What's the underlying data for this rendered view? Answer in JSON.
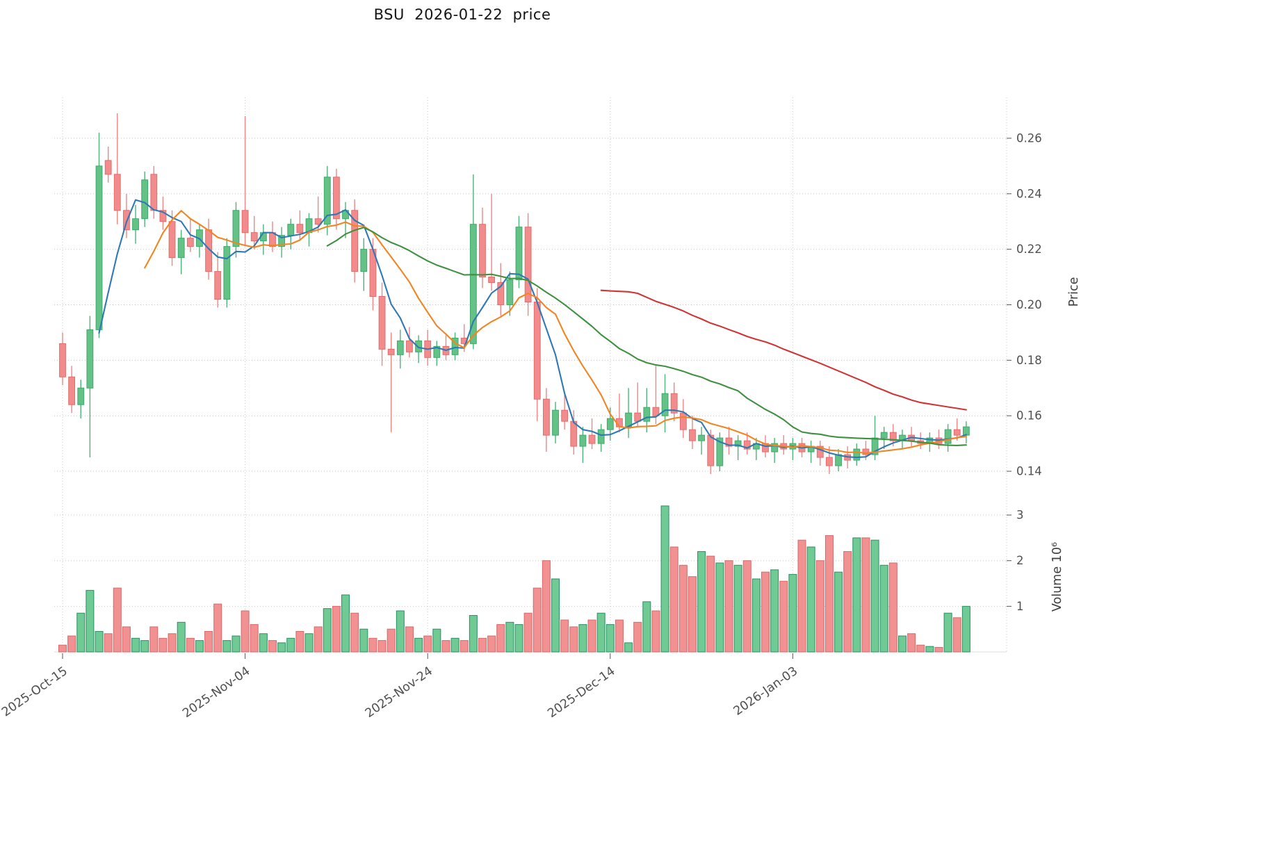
{
  "chart_data": {
    "type": "candlestick+volume",
    "title": "BSU  2026-01-22  price",
    "grid": true,
    "x_tick_labels": [
      "2025-Oct-15",
      "2025-Nov-04",
      "2025-Nov-24",
      "2025-Dec-14",
      "2026-Jan-03"
    ],
    "x_tick_indices": [
      0,
      20,
      40,
      60,
      80
    ],
    "price_axis": {
      "label": "Price",
      "ticks": [
        0.14,
        0.16,
        0.18,
        0.2,
        0.22,
        0.24,
        0.26
      ],
      "range": [
        0.1335,
        0.272
      ]
    },
    "volume_axis": {
      "label": "Volume 10⁶",
      "ticks": [
        1,
        2,
        3
      ],
      "range": [
        0,
        3.29
      ],
      "unit": "millions"
    },
    "moving_averages": [
      {
        "period": 5,
        "color": "#2e79b5"
      },
      {
        "period": 10,
        "color": "#f08522"
      },
      {
        "period": 30,
        "color": "#3d9140"
      },
      {
        "period": 60,
        "color": "#d03434"
      }
    ],
    "colors": {
      "up_fill": "#65c287",
      "up_edge": "#3fa86a",
      "up_wick": "#4db37a",
      "down_fill": "#f28c8c",
      "down_edge": "#e26c6c",
      "down_wick": "#ef8585",
      "vol_up_fill": "#6fca93",
      "vol_up_edge": "#2c8f63",
      "vol_down_fill": "#f29191",
      "vol_down_edge": "#d86868",
      "grid": "#c9c9c9",
      "tick_text": "#4f4f4f"
    },
    "columns": [
      "date",
      "open",
      "high",
      "low",
      "close",
      "volume_millions"
    ],
    "candles": [
      [
        "2025-10-15",
        0.186,
        0.19,
        0.171,
        0.174,
        0.15
      ],
      [
        "2025-10-16",
        0.174,
        0.178,
        0.161,
        0.164,
        0.35
      ],
      [
        "2025-10-17",
        0.164,
        0.173,
        0.159,
        0.17,
        0.85
      ],
      [
        "2025-10-18",
        0.17,
        0.196,
        0.145,
        0.191,
        1.35
      ],
      [
        "2025-10-19",
        0.191,
        0.262,
        0.188,
        0.25,
        0.45
      ],
      [
        "2025-10-20",
        0.252,
        0.257,
        0.244,
        0.247,
        0.4
      ],
      [
        "2025-10-21",
        0.247,
        0.269,
        0.229,
        0.234,
        1.4
      ],
      [
        "2025-10-22",
        0.234,
        0.24,
        0.224,
        0.227,
        0.55
      ],
      [
        "2025-10-23",
        0.227,
        0.236,
        0.222,
        0.231,
        0.3
      ],
      [
        "2025-10-24",
        0.231,
        0.248,
        0.228,
        0.245,
        0.25
      ],
      [
        "2025-10-25",
        0.247,
        0.25,
        0.231,
        0.234,
        0.55
      ],
      [
        "2025-10-26",
        0.234,
        0.239,
        0.227,
        0.23,
        0.3
      ],
      [
        "2025-10-27",
        0.23,
        0.234,
        0.214,
        0.217,
        0.4
      ],
      [
        "2025-10-28",
        0.217,
        0.227,
        0.211,
        0.224,
        0.65
      ],
      [
        "2025-10-29",
        0.224,
        0.231,
        0.219,
        0.221,
        0.3
      ],
      [
        "2025-10-30",
        0.221,
        0.229,
        0.217,
        0.227,
        0.25
      ],
      [
        "2025-10-31",
        0.227,
        0.231,
        0.209,
        0.212,
        0.45
      ],
      [
        "2025-11-01",
        0.212,
        0.219,
        0.199,
        0.202,
        1.05
      ],
      [
        "2025-11-02",
        0.202,
        0.224,
        0.199,
        0.221,
        0.25
      ],
      [
        "2025-11-03",
        0.221,
        0.237,
        0.217,
        0.234,
        0.35
      ],
      [
        "2025-11-04",
        0.234,
        0.268,
        0.221,
        0.226,
        0.9
      ],
      [
        "2025-11-05",
        0.226,
        0.232,
        0.22,
        0.223,
        0.6
      ],
      [
        "2025-11-06",
        0.223,
        0.229,
        0.218,
        0.226,
        0.4
      ],
      [
        "2025-11-07",
        0.226,
        0.23,
        0.219,
        0.221,
        0.25
      ],
      [
        "2025-11-08",
        0.221,
        0.228,
        0.217,
        0.225,
        0.2
      ],
      [
        "2025-11-09",
        0.225,
        0.231,
        0.22,
        0.229,
        0.3
      ],
      [
        "2025-11-10",
        0.229,
        0.234,
        0.223,
        0.226,
        0.45
      ],
      [
        "2025-11-11",
        0.226,
        0.233,
        0.221,
        0.231,
        0.4
      ],
      [
        "2025-11-12",
        0.231,
        0.239,
        0.226,
        0.229,
        0.55
      ],
      [
        "2025-11-13",
        0.229,
        0.25,
        0.225,
        0.246,
        0.95
      ],
      [
        "2025-11-14",
        0.246,
        0.249,
        0.227,
        0.231,
        1.0
      ],
      [
        "2025-11-15",
        0.231,
        0.237,
        0.224,
        0.234,
        1.25
      ],
      [
        "2025-11-16",
        0.234,
        0.238,
        0.208,
        0.212,
        0.85
      ],
      [
        "2025-11-17",
        0.212,
        0.224,
        0.205,
        0.22,
        0.5
      ],
      [
        "2025-11-18",
        0.22,
        0.224,
        0.198,
        0.203,
        0.3
      ],
      [
        "2025-11-19",
        0.203,
        0.208,
        0.178,
        0.184,
        0.25
      ],
      [
        "2025-11-20",
        0.184,
        0.19,
        0.154,
        0.182,
        0.5
      ],
      [
        "2025-11-21",
        0.182,
        0.191,
        0.177,
        0.187,
        0.9
      ],
      [
        "2025-11-22",
        0.187,
        0.192,
        0.181,
        0.183,
        0.55
      ],
      [
        "2025-11-23",
        0.183,
        0.189,
        0.179,
        0.187,
        0.3
      ],
      [
        "2025-11-24",
        0.187,
        0.191,
        0.178,
        0.181,
        0.35
      ],
      [
        "2025-11-25",
        0.181,
        0.187,
        0.178,
        0.185,
        0.5
      ],
      [
        "2025-11-26",
        0.185,
        0.189,
        0.18,
        0.182,
        0.25
      ],
      [
        "2025-11-27",
        0.182,
        0.19,
        0.18,
        0.188,
        0.3
      ],
      [
        "2025-11-28",
        0.188,
        0.193,
        0.183,
        0.186,
        0.25
      ],
      [
        "2025-11-29",
        0.186,
        0.247,
        0.184,
        0.229,
        0.8
      ],
      [
        "2025-11-30",
        0.229,
        0.235,
        0.206,
        0.21,
        0.3
      ],
      [
        "2025-12-01",
        0.21,
        0.24,
        0.205,
        0.208,
        0.35
      ],
      [
        "2025-12-02",
        0.208,
        0.215,
        0.196,
        0.2,
        0.6
      ],
      [
        "2025-12-03",
        0.2,
        0.212,
        0.196,
        0.209,
        0.65
      ],
      [
        "2025-12-04",
        0.209,
        0.232,
        0.206,
        0.228,
        0.6
      ],
      [
        "2025-12-05",
        0.228,
        0.233,
        0.196,
        0.201,
        0.85
      ],
      [
        "2025-12-06",
        0.201,
        0.206,
        0.158,
        0.166,
        1.4
      ],
      [
        "2025-12-07",
        0.166,
        0.17,
        0.147,
        0.153,
        2.0
      ],
      [
        "2025-12-08",
        0.153,
        0.165,
        0.15,
        0.162,
        1.6
      ],
      [
        "2025-12-09",
        0.162,
        0.168,
        0.155,
        0.158,
        0.7
      ],
      [
        "2025-12-10",
        0.158,
        0.162,
        0.146,
        0.149,
        0.55
      ],
      [
        "2025-12-11",
        0.149,
        0.156,
        0.143,
        0.153,
        0.6
      ],
      [
        "2025-12-12",
        0.153,
        0.159,
        0.148,
        0.15,
        0.7
      ],
      [
        "2025-12-13",
        0.15,
        0.157,
        0.147,
        0.155,
        0.85
      ],
      [
        "2025-12-14",
        0.155,
        0.163,
        0.151,
        0.159,
        0.6
      ],
      [
        "2025-12-15",
        0.159,
        0.168,
        0.154,
        0.156,
        0.7
      ],
      [
        "2025-12-16",
        0.156,
        0.17,
        0.152,
        0.161,
        0.2
      ],
      [
        "2025-12-17",
        0.161,
        0.172,
        0.156,
        0.158,
        0.65
      ],
      [
        "2025-12-18",
        0.158,
        0.17,
        0.154,
        0.163,
        1.1
      ],
      [
        "2025-12-19",
        0.163,
        0.178,
        0.157,
        0.16,
        0.9
      ],
      [
        "2025-12-20",
        0.16,
        0.175,
        0.154,
        0.168,
        3.2
      ],
      [
        "2025-12-21",
        0.168,
        0.172,
        0.158,
        0.161,
        2.3
      ],
      [
        "2025-12-22",
        0.161,
        0.166,
        0.152,
        0.155,
        1.9
      ],
      [
        "2025-12-23",
        0.155,
        0.16,
        0.148,
        0.151,
        1.65
      ],
      [
        "2025-12-24",
        0.151,
        0.156,
        0.146,
        0.153,
        2.2
      ],
      [
        "2025-12-25",
        0.153,
        0.155,
        0.139,
        0.142,
        2.1
      ],
      [
        "2025-12-26",
        0.142,
        0.154,
        0.14,
        0.152,
        1.95
      ],
      [
        "2025-12-27",
        0.152,
        0.156,
        0.146,
        0.149,
        2.0
      ],
      [
        "2025-12-28",
        0.149,
        0.153,
        0.144,
        0.151,
        1.9
      ],
      [
        "2025-12-29",
        0.151,
        0.154,
        0.146,
        0.148,
        2.0
      ],
      [
        "2025-12-30",
        0.148,
        0.152,
        0.144,
        0.15,
        1.6
      ],
      [
        "2025-12-31",
        0.15,
        0.153,
        0.145,
        0.147,
        1.75
      ],
      [
        "2026-01-01",
        0.147,
        0.152,
        0.143,
        0.15,
        1.8
      ],
      [
        "2026-01-02",
        0.15,
        0.153,
        0.146,
        0.148,
        1.55
      ],
      [
        "2026-01-03",
        0.148,
        0.152,
        0.144,
        0.15,
        1.7
      ],
      [
        "2026-01-04",
        0.15,
        0.152,
        0.145,
        0.147,
        2.45
      ],
      [
        "2026-01-05",
        0.147,
        0.151,
        0.143,
        0.149,
        2.3
      ],
      [
        "2026-01-06",
        0.149,
        0.151,
        0.142,
        0.145,
        2.0
      ],
      [
        "2026-01-07",
        0.145,
        0.149,
        0.139,
        0.142,
        2.55
      ],
      [
        "2026-01-08",
        0.142,
        0.148,
        0.14,
        0.146,
        1.75
      ],
      [
        "2026-01-09",
        0.146,
        0.149,
        0.141,
        0.144,
        2.2
      ],
      [
        "2026-01-10",
        0.144,
        0.15,
        0.142,
        0.148,
        2.5
      ],
      [
        "2026-01-11",
        0.148,
        0.151,
        0.144,
        0.146,
        2.5
      ],
      [
        "2026-01-12",
        0.146,
        0.16,
        0.144,
        0.152,
        2.45
      ],
      [
        "2026-01-13",
        0.152,
        0.156,
        0.148,
        0.154,
        1.9
      ],
      [
        "2026-01-14",
        0.154,
        0.157,
        0.149,
        0.151,
        1.95
      ],
      [
        "2026-01-15",
        0.151,
        0.155,
        0.148,
        0.153,
        0.35
      ],
      [
        "2026-01-16",
        0.153,
        0.156,
        0.149,
        0.151,
        0.4
      ],
      [
        "2026-01-17",
        0.151,
        0.154,
        0.148,
        0.15,
        0.15
      ],
      [
        "2026-01-18",
        0.15,
        0.154,
        0.147,
        0.152,
        0.12
      ],
      [
        "2026-01-19",
        0.152,
        0.155,
        0.148,
        0.15,
        0.1
      ],
      [
        "2026-01-20",
        0.15,
        0.157,
        0.147,
        0.155,
        0.85
      ],
      [
        "2026-01-21",
        0.155,
        0.159,
        0.151,
        0.153,
        0.75
      ],
      [
        "2026-01-22",
        0.153,
        0.158,
        0.15,
        0.156,
        1.0
      ]
    ]
  }
}
